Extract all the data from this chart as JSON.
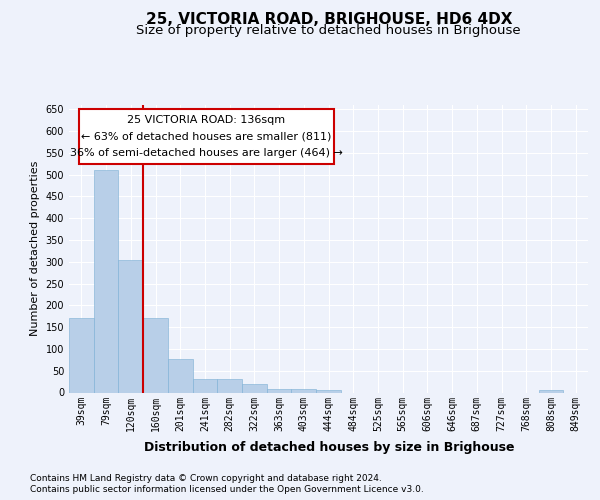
{
  "title": "25, VICTORIA ROAD, BRIGHOUSE, HD6 4DX",
  "subtitle": "Size of property relative to detached houses in Brighouse",
  "xlabel": "Distribution of detached houses by size in Brighouse",
  "ylabel": "Number of detached properties",
  "footnote1": "Contains HM Land Registry data © Crown copyright and database right 2024.",
  "footnote2": "Contains public sector information licensed under the Open Government Licence v3.0.",
  "annotation_line1": "25 VICTORIA ROAD: 136sqm",
  "annotation_line2": "← 63% of detached houses are smaller (811)",
  "annotation_line3": "36% of semi-detached houses are larger (464) →",
  "bins": [
    "39sqm",
    "79sqm",
    "120sqm",
    "160sqm",
    "201sqm",
    "241sqm",
    "282sqm",
    "322sqm",
    "363sqm",
    "403sqm",
    "444sqm",
    "484sqm",
    "525sqm",
    "565sqm",
    "606sqm",
    "646sqm",
    "687sqm",
    "727sqm",
    "768sqm",
    "808sqm",
    "849sqm"
  ],
  "values": [
    170,
    511,
    305,
    170,
    77,
    32,
    32,
    20,
    7,
    7,
    5,
    0,
    0,
    0,
    0,
    0,
    0,
    0,
    0,
    5,
    0
  ],
  "bar_color": "#b8cfe8",
  "bar_edge_color": "#7aafd4",
  "vline_x": 2.5,
  "vline_color": "#cc0000",
  "annotation_box_color": "#cc0000",
  "ylim": [
    0,
    660
  ],
  "yticks": [
    0,
    50,
    100,
    150,
    200,
    250,
    300,
    350,
    400,
    450,
    500,
    550,
    600,
    650
  ],
  "bg_color": "#eef2fb",
  "plot_bg_color": "#eef2fb",
  "grid_color": "#ffffff",
  "title_fontsize": 11,
  "subtitle_fontsize": 9.5,
  "xlabel_fontsize": 9,
  "ylabel_fontsize": 8,
  "tick_fontsize": 7,
  "annotation_fontsize": 8,
  "footnote_fontsize": 6.5
}
